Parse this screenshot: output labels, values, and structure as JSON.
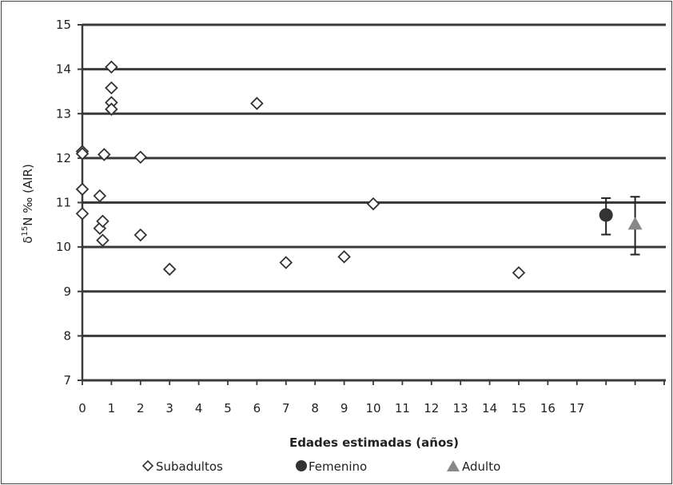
{
  "chart_data": {
    "type": "scatter",
    "title": "",
    "xlabel": "Edades estimadas (años)",
    "ylabel_prefix": "δ",
    "ylabel_sup": "15",
    "ylabel_rest": "N ‰ (AIR)",
    "ylim": [
      7,
      15
    ],
    "yticks": [
      "7",
      "8",
      "9",
      "10",
      "11",
      "12",
      "13",
      "14",
      "15"
    ],
    "xlim": [
      0,
      20
    ],
    "xticks": [
      "0",
      "1",
      "2",
      "3",
      "4",
      "5",
      "6",
      "7",
      "8",
      "9",
      "10",
      "11",
      "12",
      "13",
      "14",
      "15",
      "16",
      "17"
    ],
    "grid": "horizontal",
    "legend_position": "bottom",
    "series": [
      {
        "name": "Subadultos",
        "marker": "diamond-open",
        "color": "#333333",
        "points": [
          {
            "x": 0,
            "y": 12.15
          },
          {
            "x": 0,
            "y": 12.1
          },
          {
            "x": 0,
            "y": 11.3
          },
          {
            "x": 0,
            "y": 10.75
          },
          {
            "x": 0.6,
            "y": 11.15
          },
          {
            "x": 0.6,
            "y": 10.42
          },
          {
            "x": 0.7,
            "y": 10.15
          },
          {
            "x": 0.7,
            "y": 10.58
          },
          {
            "x": 0.75,
            "y": 12.08
          },
          {
            "x": 1,
            "y": 14.05
          },
          {
            "x": 1,
            "y": 13.58
          },
          {
            "x": 1,
            "y": 13.25
          },
          {
            "x": 1,
            "y": 13.1
          },
          {
            "x": 2,
            "y": 12.02
          },
          {
            "x": 2,
            "y": 10.27
          },
          {
            "x": 3,
            "y": 9.5
          },
          {
            "x": 6,
            "y": 13.23
          },
          {
            "x": 7,
            "y": 9.65
          },
          {
            "x": 9,
            "y": 9.78
          },
          {
            "x": 10,
            "y": 10.97
          },
          {
            "x": 15,
            "y": 9.42
          }
        ]
      },
      {
        "name": "Femenino",
        "marker": "circle-filled",
        "color": "#333333",
        "points": [
          {
            "x": 18,
            "y": 10.72,
            "err_low": 10.28,
            "err_high": 11.1
          }
        ]
      },
      {
        "name": "Adulto",
        "marker": "triangle-filled",
        "color": "#888888",
        "points": [
          {
            "x": 19,
            "y": 10.5,
            "err_low": 9.83,
            "err_high": 11.13
          }
        ]
      }
    ]
  }
}
